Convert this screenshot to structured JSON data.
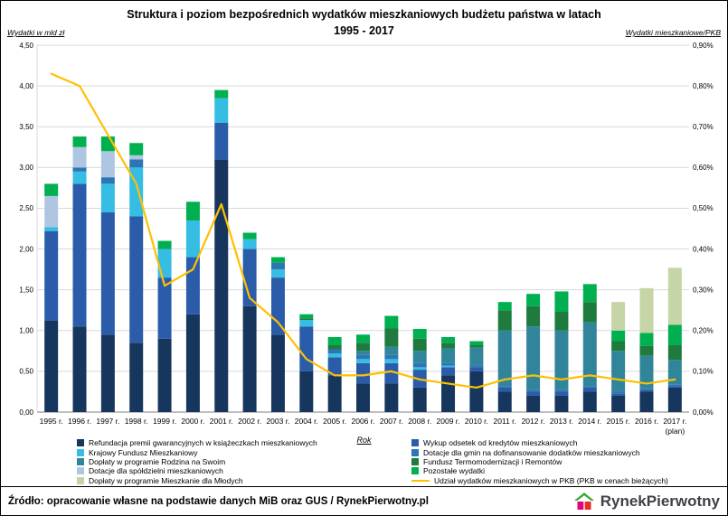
{
  "title_line1": "Struktura i poziom bezpośrednich wydatków mieszkaniowych budżetu państwa w latach",
  "title_line2": "1995 - 2017",
  "left_axis_label": "Wydatki w mld zł",
  "right_axis_label": "Wydatki mieszkaniowe/PKB",
  "x_axis_label": "Rok",
  "footer": {
    "source": "Źródło: opracowanie własne na podstawie danych MiB oraz GUS / RynekPierwotny.pl",
    "logo_text": "RynekPierwotny"
  },
  "chart_data": {
    "type": "bar",
    "subtype": "stacked-bar-with-line",
    "categories": [
      "1995 r.",
      "1996 r.",
      "1997 r.",
      "1998 r.",
      "1999 r.",
      "2000 r.",
      "2001 r.",
      "2002 r.",
      "2003 r.",
      "2004 r.",
      "2005 r.",
      "2006 r.",
      "2007 r.",
      "2008 r.",
      "2009 r.",
      "2010 r.",
      "2011 r.",
      "2012 r.",
      "2013 r.",
      "2014 r.",
      "2015 r.",
      "2016 r.",
      "2017 r."
    ],
    "last_category_note": "(plan)",
    "ylim_left": [
      0,
      4.5
    ],
    "ylim_right": [
      0,
      0.9
    ],
    "y_ticks_left": [
      "0,00",
      "0,50",
      "1,00",
      "1,50",
      "2,00",
      "2,50",
      "3,00",
      "3,50",
      "4,00",
      "4,50"
    ],
    "y_ticks_right": [
      "0,00%",
      "0,10%",
      "0,20%",
      "0,30%",
      "0,40%",
      "0,50%",
      "0,60%",
      "0,70%",
      "0,80%",
      "0,90%"
    ],
    "grid": true,
    "legend_position": "bottom",
    "gridline_color": "#d9d9d9",
    "axis_color": "#7f7f7f",
    "series": [
      {
        "name": "Refundacja premii gwarancyjnych w książeczkach mieszkaniowych",
        "color": "#17365D",
        "values": [
          1.12,
          1.05,
          0.95,
          0.85,
          0.9,
          1.2,
          3.1,
          1.3,
          0.95,
          0.5,
          0.45,
          0.35,
          0.35,
          0.3,
          0.45,
          0.5,
          0.25,
          0.2,
          0.2,
          0.25,
          0.2,
          0.25,
          0.3
        ]
      },
      {
        "name": "Wykup odsetek od kredytów mieszkaniowych",
        "color": "#2A5CAA",
        "values": [
          1.1,
          1.75,
          1.5,
          1.55,
          0.75,
          0.7,
          0.45,
          0.7,
          0.7,
          0.55,
          0.22,
          0.25,
          0.25,
          0.22,
          0.1,
          0.05,
          0.05,
          0.05,
          0.05,
          0.05,
          0.03,
          0.02,
          0.02
        ]
      },
      {
        "name": "Krajowy Fundusz Mieszkaniowy",
        "color": "#35BDE4",
        "values": [
          0.05,
          0.15,
          0.35,
          0.6,
          0.35,
          0.45,
          0.3,
          0.12,
          0.1,
          0.08,
          0.05,
          0.05,
          0.05,
          0.03,
          0.02,
          0,
          0,
          0,
          0,
          0,
          0,
          0,
          0
        ]
      },
      {
        "name": "Dotacje dla gmin na dofinansowanie dodatków mieszkaniowych",
        "color": "#2E75B6",
        "values": [
          0,
          0.05,
          0.08,
          0.1,
          0,
          0,
          0,
          0,
          0.08,
          0,
          0.05,
          0.05,
          0.05,
          0.05,
          0.03,
          0.02,
          0.02,
          0.02,
          0.02,
          0.02,
          0.02,
          0.02,
          0.02
        ]
      },
      {
        "name": "Dopłaty w programie Rodzina na Swoim",
        "color": "#31859B",
        "values": [
          0,
          0,
          0,
          0,
          0,
          0,
          0,
          0,
          0,
          0,
          0,
          0.05,
          0.1,
          0.15,
          0.18,
          0.22,
          0.68,
          0.78,
          0.73,
          0.78,
          0.5,
          0.4,
          0.3
        ]
      },
      {
        "name": "Dotacje dla spółdzielni mieszkaniowych",
        "color": "#AEC6E2",
        "values": [
          0.38,
          0.25,
          0.32,
          0.05,
          0,
          0,
          0,
          0,
          0,
          0,
          0,
          0,
          0,
          0,
          0,
          0,
          0,
          0,
          0,
          0,
          0,
          0,
          0
        ]
      },
      {
        "name": "Fundusz Termomodernizacji i Remontów",
        "color": "#1F7A3D",
        "values": [
          0,
          0,
          0,
          0,
          0,
          0,
          0,
          0,
          0,
          0.02,
          0.05,
          0.1,
          0.23,
          0.15,
          0.07,
          0.03,
          0.25,
          0.25,
          0.23,
          0.25,
          0.12,
          0.12,
          0.18
        ]
      },
      {
        "name": "Pozostałe wydatki",
        "color": "#00B050",
        "values": [
          0.15,
          0.13,
          0.18,
          0.15,
          0.1,
          0.23,
          0.1,
          0.08,
          0.07,
          0.05,
          0.1,
          0.1,
          0.15,
          0.12,
          0.07,
          0.05,
          0.1,
          0.15,
          0.25,
          0.22,
          0.13,
          0.16,
          0.25
        ]
      },
      {
        "name": "Dopłaty w programie Mieszkanie dla Młodych",
        "color": "#C5D5A5",
        "values": [
          0,
          0,
          0,
          0,
          0,
          0,
          0,
          0,
          0,
          0,
          0,
          0,
          0,
          0,
          0,
          0,
          0,
          0,
          0,
          0,
          0.35,
          0.55,
          0.7
        ]
      }
    ],
    "line_series": {
      "name": "Udział wydatków mieszkaniowych w PKB (PKB w cenach bieżących)",
      "color": "#FFC000",
      "values": [
        0.83,
        0.8,
        0.68,
        0.56,
        0.31,
        0.35,
        0.51,
        0.28,
        0.22,
        0.13,
        0.09,
        0.09,
        0.1,
        0.08,
        0.07,
        0.06,
        0.08,
        0.09,
        0.08,
        0.09,
        0.08,
        0.07,
        0.08
      ]
    },
    "legend_columns": [
      [
        0,
        2,
        4,
        5,
        8
      ],
      [
        1,
        3,
        6,
        7,
        "line"
      ]
    ]
  }
}
